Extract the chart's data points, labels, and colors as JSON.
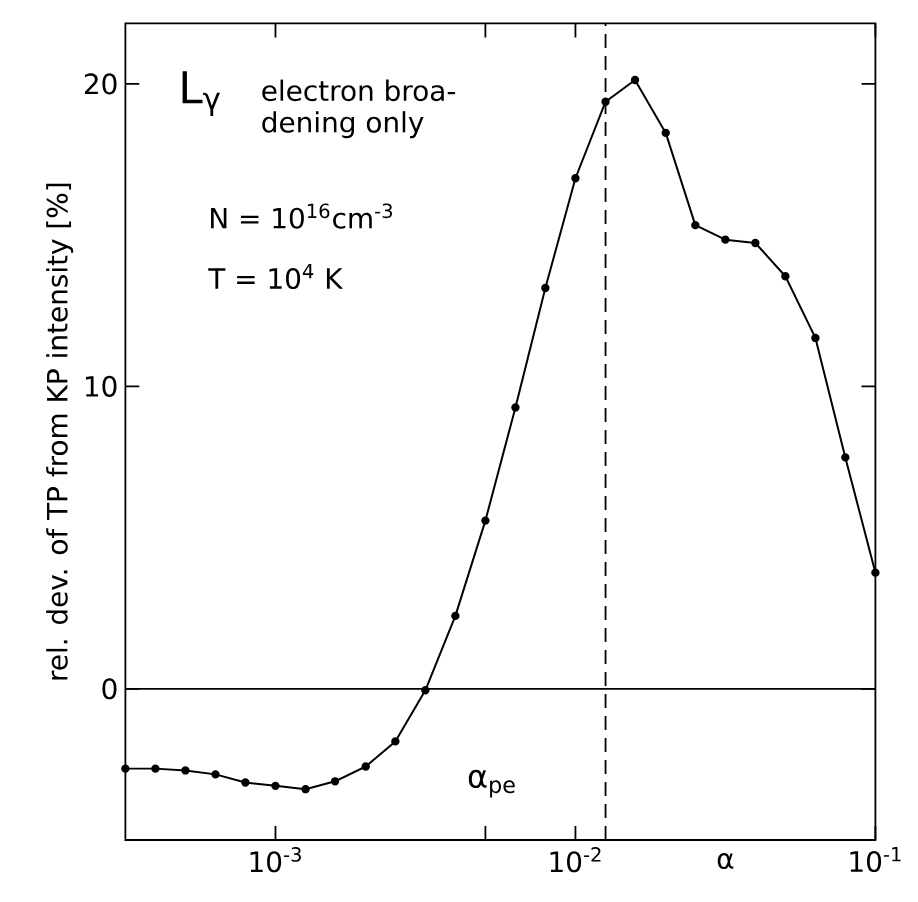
{
  "chart_data": {
    "type": "line",
    "xlabel": "α",
    "ylabel": "rel. dev. of TP from KP intensity [%]",
    "annotations": [
      "L$_{γ}$",
      "electron broa-",
      "dening only",
      "N = 10$^{16}$cm$^{-3}$",
      "T = 10$^{4}$ K",
      "α$_{pe}$"
    ],
    "log": "x",
    "xlim": [
      0.000316,
      0.1
    ],
    "ylim": [
      -5,
      22
    ],
    "xticks": [
      {
        "value": 0.001,
        "label": "10$^{-3}$"
      },
      {
        "value": 0.00501,
        "label": null
      },
      {
        "value": 0.01,
        "label": "10$^{-2}$"
      },
      {
        "value": 0.1,
        "label": "10$^{-1}$"
      }
    ],
    "yticks": [
      0,
      10,
      20
    ],
    "marker": "circle",
    "line_style": "solid",
    "ref_lines": [
      {
        "axis": "y",
        "value": 0,
        "line_style": "solid"
      },
      {
        "axis": "x",
        "value": 0.0126,
        "line_style": "dashed"
      }
    ],
    "series": [
      {
        "color": "#000000",
        "x": [
          0.000316,
          0.000398,
          0.000501,
          0.000631,
          0.000794,
          0.001,
          0.00126,
          0.00158,
          0.002,
          0.00251,
          0.00316,
          0.00398,
          0.00501,
          0.00631,
          0.00794,
          0.01,
          0.0126,
          0.0158,
          0.02,
          0.0251,
          0.0316,
          0.0398,
          0.0501,
          0.0631,
          0.0794,
          0.1
        ],
        "values": [
          -2.64,
          -2.64,
          -2.7,
          -2.83,
          -3.1,
          -3.21,
          -3.32,
          -3.06,
          -2.57,
          -1.74,
          -0.05,
          2.41,
          5.56,
          9.3,
          13.25,
          16.88,
          19.41,
          20.13,
          18.38,
          15.33,
          14.85,
          14.74,
          13.64,
          11.6,
          7.65,
          3.84
        ]
      }
    ]
  }
}
